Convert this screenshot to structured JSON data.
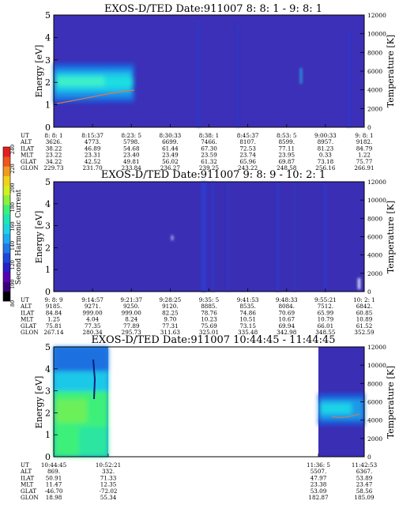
{
  "colors": {
    "colorbar": [
      "#000000",
      "#3a007a",
      "#5a00b0",
      "#2a1ec8",
      "#1e46d8",
      "#1e78e6",
      "#1eaaf0",
      "#1ed2e0",
      "#1ee6b4",
      "#3cf07a",
      "#8cf03c",
      "#d2f01e",
      "#f0d21e",
      "#f09a1e",
      "#f0561e",
      "#e61e1e"
    ],
    "background": "#3a2eb4",
    "temperature_trace": "#e07850"
  },
  "colorbar": {
    "label": "Second Harmonic Current",
    "ticks": [
      "80",
      "100",
      "120",
      "140",
      "160",
      "180",
      "200",
      "220",
      "240"
    ]
  },
  "chart_data": [
    {
      "type": "heatmap",
      "title": "EXOS-D/TED   Date:911007  8: 8: 1 - 9: 8: 1",
      "ylabel": "Energy [eV]",
      "y2label": "Temperature [K]",
      "ylim": [
        0,
        5
      ],
      "y2lim": [
        0,
        12000
      ],
      "y_ticks": [
        "0",
        "1",
        "2",
        "3",
        "4",
        "5"
      ],
      "y2_ticks": [
        "0",
        "2000",
        "4000",
        "6000",
        "8000",
        "10000",
        "12000"
      ],
      "ephemeris": {
        "labels": [
          "UT",
          "ALT",
          "ILAT",
          "MLT",
          "GLAT",
          "GLON"
        ],
        "columns": [
          [
            "8: 8: 1",
            "3626.",
            "38.22",
            "23.22",
            "34.22",
            "229.73"
          ],
          [
            "8:15:37",
            "4773.",
            "46.89",
            "23.31",
            "42.52",
            "231.70"
          ],
          [
            "8:23: 5",
            "5798.",
            "54.68",
            "23.40",
            "49.81",
            "233.84"
          ],
          [
            "8:30:33",
            "6699.",
            "61.44",
            "23.49",
            "56.02",
            "236.27"
          ],
          [
            "8:38: 1",
            "7466.",
            "67.30",
            "23.59",
            "61.32",
            "239.25"
          ],
          [
            "8:45:37",
            "8107.",
            "72.53",
            "23.74",
            "65.96",
            "243.22"
          ],
          [
            "8:53: 5",
            "8599.",
            "77.11",
            "23.95",
            "69.87",
            "248.58"
          ],
          [
            "9:00:33",
            "8957.",
            "81.23",
            "0.33",
            "73.18",
            "256.16"
          ],
          [
            "9: 8: 1",
            "9182.",
            "84.79",
            "1.22",
            "75.77",
            "266.91"
          ]
        ]
      },
      "features": "intense band 1-3 eV from 8:08 to 8:25; temperature trace rising ~2500K to ~4500K"
    },
    {
      "type": "heatmap",
      "title": "EXOS-D/TED   Date:911007  9: 8: 9 - 10: 2: 1",
      "ylabel": "Energy [eV]",
      "y2label": "Temperature [K]",
      "ylim": [
        0,
        5
      ],
      "y2lim": [
        0,
        12000
      ],
      "y_ticks": [
        "0",
        "1",
        "2",
        "3",
        "4",
        "5"
      ],
      "y2_ticks": [
        "0",
        "2000",
        "4000",
        "6000",
        "8000",
        "10000",
        "12000"
      ],
      "ephemeris": {
        "labels": [
          "UT",
          "ALT",
          "ILAT",
          "MLT",
          "GLAT",
          "GLON"
        ],
        "columns": [
          [
            "9: 8: 9",
            "9185.",
            "84.84",
            "1.25",
            "75.81",
            "267.14"
          ],
          [
            "9:14:57",
            "9271.",
            "999.00",
            "4.04",
            "77.35",
            "280.34"
          ],
          [
            "9:21:37",
            "9250.",
            "999.00",
            "8.24",
            "77.89",
            "295.73"
          ],
          [
            "9:28:25",
            "9120.",
            "82.25",
            "9.70",
            "77.31",
            "311.63"
          ],
          [
            "9:35: 5",
            "8885.",
            "78.76",
            "10.23",
            "75.69",
            "325.01"
          ],
          [
            "9:41:53",
            "8535.",
            "74.86",
            "10.51",
            "73.15",
            "335.48"
          ],
          [
            "9:48:33",
            "8084.",
            "70.69",
            "10.67",
            "69.94",
            "342.98"
          ],
          [
            "9:55:21",
            "7512.",
            "65.99",
            "10.79",
            "66.01",
            "348.55"
          ],
          [
            "10: 2: 1",
            "6842.",
            "60.85",
            "10.89",
            "61.52",
            "352.59"
          ]
        ]
      },
      "features": "uniform low level with vertical streaks near 9:36"
    },
    {
      "type": "heatmap",
      "title": "EXOS-D/TED   Date:911007  10:44:45 - 11:44:45",
      "ylabel": "Energy [eV]",
      "y2label": "Temperature [K]",
      "ylim": [
        0,
        5
      ],
      "y2lim": [
        0,
        12000
      ],
      "y_ticks": [
        "0",
        "1",
        "2",
        "3",
        "4",
        "5"
      ],
      "y2_ticks": [
        "0",
        "2000",
        "4000",
        "6000",
        "8000",
        "10000",
        "12000"
      ],
      "ephemeris": {
        "labels": [
          "UT",
          "ALT",
          "ILAT",
          "MLT",
          "GLAT",
          "GLON"
        ],
        "columns": [
          [
            "10:44:45",
            "869.",
            "50.91",
            "11.47",
            "-46.70",
            "18.98"
          ],
          [
            "10:52:21",
            "332.",
            "71.33",
            "12.35",
            "-72.02",
            "55.34"
          ],
          [
            "11:36: 5",
            "5507.",
            "47.97",
            "23.38",
            "53.09",
            "182.87"
          ],
          [
            "11:42:53",
            "6367.",
            "53.89",
            "23.47",
            "58.56",
            "185.09"
          ]
        ]
      },
      "features": "data only 10:44-10:53 (broad green/cyan) and 11:36-11:44 (band 1.7-3 eV); gap in between"
    }
  ]
}
